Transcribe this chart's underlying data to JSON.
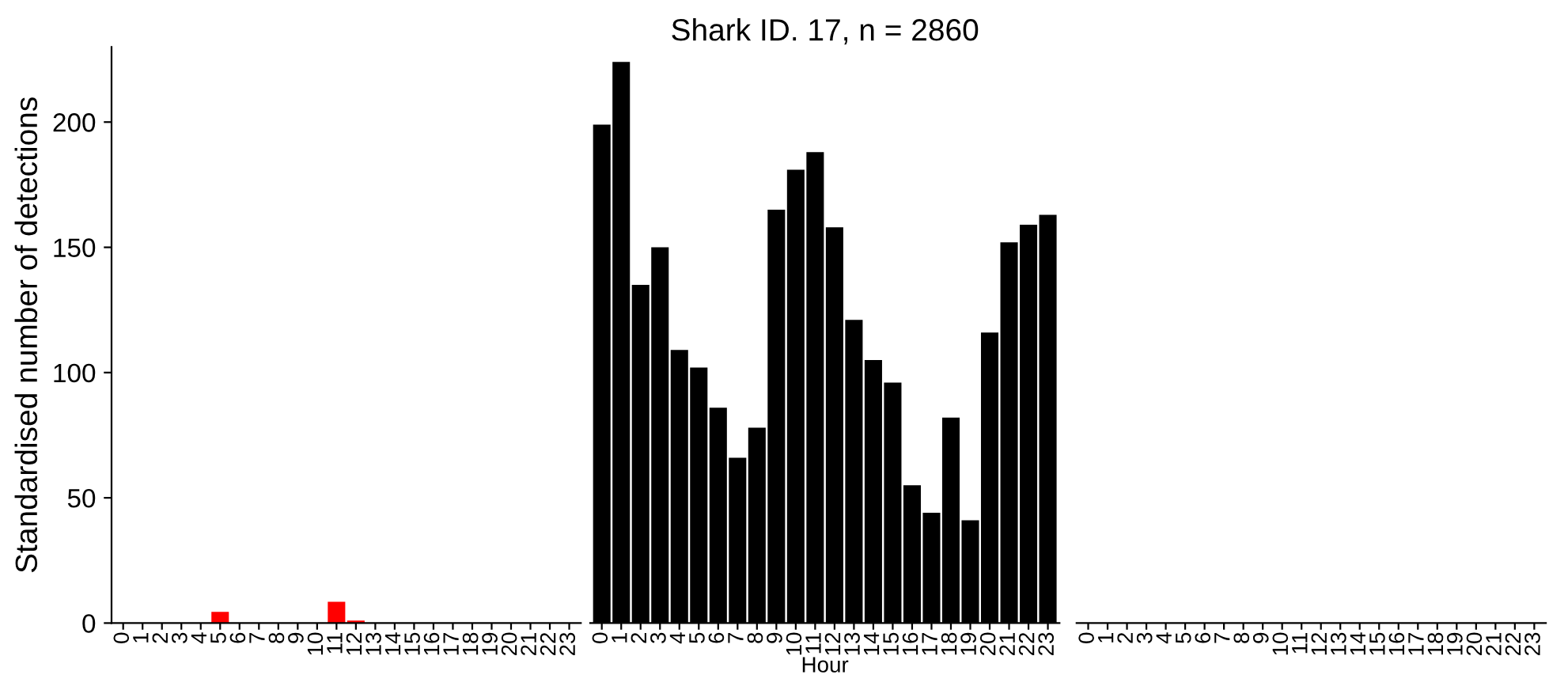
{
  "chart_data": [
    {
      "type": "bar",
      "ylabel": "Standardised number of detections",
      "categories": [
        "0",
        "1",
        "2",
        "3",
        "4",
        "5",
        "6",
        "7",
        "8",
        "9",
        "10",
        "11",
        "12",
        "13",
        "14",
        "15",
        "16",
        "17",
        "18",
        "19",
        "20",
        "21",
        "22",
        "23"
      ],
      "series": [
        {
          "color": "#ff0000",
          "values": [
            0,
            0,
            0,
            0,
            0,
            4.5,
            0,
            0,
            0,
            0,
            0,
            8.5,
            1,
            0,
            0,
            0,
            0,
            0,
            0,
            0,
            0,
            0,
            0,
            0
          ]
        }
      ],
      "ylim": [
        0,
        230
      ],
      "yticks": [
        0,
        50,
        100,
        150,
        200
      ],
      "grid": false,
      "legend": false
    },
    {
      "type": "bar",
      "title": "Shark ID. 17, n = 2860",
      "xlabel": "Hour",
      "categories": [
        "0",
        "1",
        "2",
        "3",
        "4",
        "5",
        "6",
        "7",
        "8",
        "9",
        "10",
        "11",
        "12",
        "13",
        "14",
        "15",
        "16",
        "17",
        "18",
        "19",
        "20",
        "21",
        "22",
        "23"
      ],
      "series": [
        {
          "color": "#000000",
          "values": [
            199,
            224,
            135,
            150,
            109,
            102,
            86,
            66,
            78,
            165,
            181,
            188,
            158,
            121,
            105,
            96,
            55,
            44,
            82,
            41,
            116,
            152,
            159,
            163
          ]
        }
      ],
      "yticks": [
        0,
        50,
        100,
        150,
        200
      ],
      "tick_labels": "x",
      "grid": false,
      "legend": false
    },
    {
      "type": "bar",
      "categories": [
        "0",
        "1",
        "2",
        "3",
        "4",
        "5",
        "6",
        "7",
        "8",
        "9",
        "10",
        "11",
        "12",
        "13",
        "14",
        "15",
        "16",
        "17",
        "18",
        "19",
        "20",
        "21",
        "22",
        "23"
      ],
      "series": [
        {
          "color": "#000000",
          "values": [
            0,
            0,
            0,
            0,
            0,
            0,
            0,
            0,
            0,
            0,
            0,
            0,
            0,
            0,
            0,
            0,
            0,
            0,
            0,
            0,
            0,
            0,
            0,
            0
          ]
        }
      ],
      "yticks": [
        0,
        50,
        100,
        150,
        200
      ],
      "tick_labels": "x",
      "grid": false,
      "legend": false
    }
  ]
}
